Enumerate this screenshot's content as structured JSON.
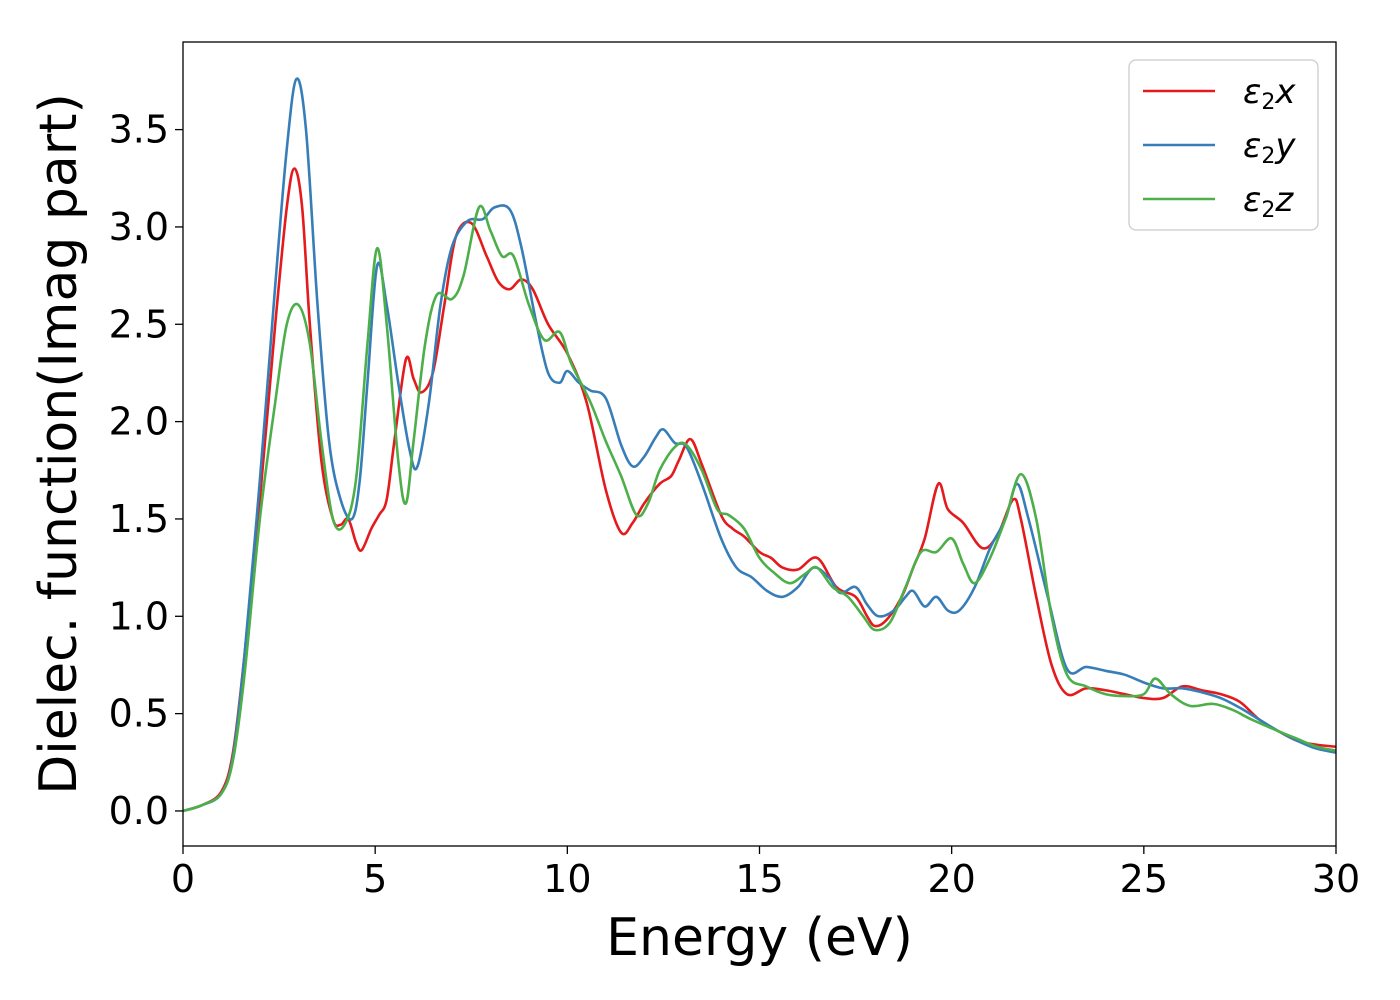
{
  "chart_data": {
    "type": "line",
    "title": "",
    "xlabel": "Energy (eV)",
    "ylabel": "Dielec. function(Imag part)",
    "xlim": [
      0,
      30
    ],
    "ylim": [
      -0.18,
      3.95
    ],
    "xticks": [
      0,
      5,
      10,
      15,
      20,
      25,
      30
    ],
    "xtick_labels": [
      "0",
      "5",
      "10",
      "15",
      "20",
      "25",
      "30"
    ],
    "yticks": [
      0.0,
      0.5,
      1.0,
      1.5,
      2.0,
      2.5,
      3.0,
      3.5
    ],
    "ytick_labels": [
      "0.0",
      "0.5",
      "1.0",
      "1.5",
      "2.0",
      "2.5",
      "3.0",
      "3.5"
    ],
    "grid": false,
    "legend_position": "top-right",
    "series": [
      {
        "name": "ε₂x",
        "legend_base": "ε",
        "legend_sub": "2",
        "legend_suffix": "x",
        "color": "#e41a1c",
        "points": [
          [
            0,
            0
          ],
          [
            0.5,
            0.03
          ],
          [
            1.0,
            0.1
          ],
          [
            1.3,
            0.3
          ],
          [
            1.6,
            0.8
          ],
          [
            2.0,
            1.6
          ],
          [
            2.4,
            2.5
          ],
          [
            2.7,
            3.1
          ],
          [
            2.9,
            3.3
          ],
          [
            3.1,
            3.1
          ],
          [
            3.3,
            2.5
          ],
          [
            3.6,
            1.8
          ],
          [
            3.9,
            1.5
          ],
          [
            4.1,
            1.47
          ],
          [
            4.3,
            1.5
          ],
          [
            4.5,
            1.38
          ],
          [
            4.65,
            1.34
          ],
          [
            4.9,
            1.45
          ],
          [
            5.1,
            1.52
          ],
          [
            5.3,
            1.6
          ],
          [
            5.5,
            1.9
          ],
          [
            5.8,
            2.32
          ],
          [
            6.0,
            2.22
          ],
          [
            6.2,
            2.15
          ],
          [
            6.5,
            2.25
          ],
          [
            6.8,
            2.6
          ],
          [
            7.1,
            2.95
          ],
          [
            7.5,
            3.02
          ],
          [
            7.9,
            2.85
          ],
          [
            8.2,
            2.72
          ],
          [
            8.5,
            2.68
          ],
          [
            8.8,
            2.73
          ],
          [
            9.1,
            2.68
          ],
          [
            9.5,
            2.5
          ],
          [
            10.0,
            2.35
          ],
          [
            10.5,
            2.1
          ],
          [
            11.0,
            1.65
          ],
          [
            11.4,
            1.43
          ],
          [
            11.7,
            1.48
          ],
          [
            12.0,
            1.58
          ],
          [
            12.4,
            1.68
          ],
          [
            12.7,
            1.72
          ],
          [
            12.9,
            1.8
          ],
          [
            13.2,
            1.91
          ],
          [
            13.5,
            1.78
          ],
          [
            14.0,
            1.52
          ],
          [
            14.3,
            1.45
          ],
          [
            14.6,
            1.41
          ],
          [
            15.0,
            1.33
          ],
          [
            15.3,
            1.3
          ],
          [
            15.6,
            1.25
          ],
          [
            16.0,
            1.24
          ],
          [
            16.5,
            1.3
          ],
          [
            17.0,
            1.15
          ],
          [
            17.5,
            1.1
          ],
          [
            17.8,
            1.0
          ],
          [
            18.0,
            0.95
          ],
          [
            18.3,
            0.98
          ],
          [
            18.7,
            1.1
          ],
          [
            19.0,
            1.25
          ],
          [
            19.3,
            1.4
          ],
          [
            19.65,
            1.68
          ],
          [
            19.9,
            1.55
          ],
          [
            20.3,
            1.48
          ],
          [
            20.8,
            1.35
          ],
          [
            21.2,
            1.42
          ],
          [
            21.6,
            1.6
          ],
          [
            21.8,
            1.5
          ],
          [
            22.2,
            1.1
          ],
          [
            22.6,
            0.75
          ],
          [
            23.0,
            0.6
          ],
          [
            23.5,
            0.63
          ],
          [
            24.0,
            0.62
          ],
          [
            24.5,
            0.6
          ],
          [
            25.0,
            0.58
          ],
          [
            25.5,
            0.58
          ],
          [
            26.0,
            0.64
          ],
          [
            26.5,
            0.62
          ],
          [
            27.0,
            0.6
          ],
          [
            27.5,
            0.56
          ],
          [
            28.0,
            0.47
          ],
          [
            28.5,
            0.41
          ],
          [
            29.0,
            0.36
          ],
          [
            29.5,
            0.34
          ],
          [
            30,
            0.33
          ]
        ]
      },
      {
        "name": "ε₂y",
        "legend_base": "ε",
        "legend_sub": "2",
        "legend_suffix": "y",
        "color": "#377eb8",
        "points": [
          [
            0,
            0
          ],
          [
            0.5,
            0.03
          ],
          [
            1.0,
            0.09
          ],
          [
            1.3,
            0.28
          ],
          [
            1.6,
            0.8
          ],
          [
            2.0,
            1.7
          ],
          [
            2.4,
            2.7
          ],
          [
            2.7,
            3.4
          ],
          [
            2.95,
            3.76
          ],
          [
            3.2,
            3.5
          ],
          [
            3.5,
            2.6
          ],
          [
            3.8,
            1.9
          ],
          [
            4.1,
            1.6
          ],
          [
            4.4,
            1.5
          ],
          [
            4.6,
            1.7
          ],
          [
            4.8,
            2.2
          ],
          [
            5.05,
            2.8
          ],
          [
            5.3,
            2.6
          ],
          [
            5.6,
            2.2
          ],
          [
            5.9,
            1.85
          ],
          [
            6.1,
            1.77
          ],
          [
            6.4,
            2.1
          ],
          [
            6.7,
            2.6
          ],
          [
            7.0,
            2.9
          ],
          [
            7.4,
            3.03
          ],
          [
            7.8,
            3.04
          ],
          [
            8.1,
            3.1
          ],
          [
            8.5,
            3.09
          ],
          [
            8.8,
            2.9
          ],
          [
            9.2,
            2.5
          ],
          [
            9.5,
            2.25
          ],
          [
            9.8,
            2.2
          ],
          [
            10.0,
            2.26
          ],
          [
            10.3,
            2.2
          ],
          [
            10.6,
            2.16
          ],
          [
            11.0,
            2.12
          ],
          [
            11.4,
            1.88
          ],
          [
            11.7,
            1.77
          ],
          [
            12.0,
            1.82
          ],
          [
            12.3,
            1.92
          ],
          [
            12.5,
            1.96
          ],
          [
            12.8,
            1.89
          ],
          [
            13.1,
            1.87
          ],
          [
            13.5,
            1.68
          ],
          [
            14.0,
            1.4
          ],
          [
            14.4,
            1.25
          ],
          [
            14.8,
            1.2
          ],
          [
            15.2,
            1.13
          ],
          [
            15.6,
            1.1
          ],
          [
            16.0,
            1.15
          ],
          [
            16.4,
            1.25
          ],
          [
            16.8,
            1.2
          ],
          [
            17.1,
            1.12
          ],
          [
            17.5,
            1.15
          ],
          [
            17.8,
            1.06
          ],
          [
            18.1,
            1.0
          ],
          [
            18.5,
            1.03
          ],
          [
            18.8,
            1.1
          ],
          [
            19.0,
            1.13
          ],
          [
            19.3,
            1.05
          ],
          [
            19.6,
            1.1
          ],
          [
            19.9,
            1.03
          ],
          [
            20.2,
            1.03
          ],
          [
            20.6,
            1.15
          ],
          [
            21.0,
            1.35
          ],
          [
            21.4,
            1.5
          ],
          [
            21.7,
            1.68
          ],
          [
            22.0,
            1.5
          ],
          [
            22.5,
            1.1
          ],
          [
            23.0,
            0.73
          ],
          [
            23.5,
            0.74
          ],
          [
            24.0,
            0.72
          ],
          [
            24.5,
            0.7
          ],
          [
            25.0,
            0.66
          ],
          [
            25.5,
            0.63
          ],
          [
            26.0,
            0.63
          ],
          [
            26.5,
            0.61
          ],
          [
            27.0,
            0.58
          ],
          [
            27.5,
            0.53
          ],
          [
            28.0,
            0.47
          ],
          [
            28.5,
            0.41
          ],
          [
            29.0,
            0.36
          ],
          [
            29.5,
            0.32
          ],
          [
            30,
            0.3
          ]
        ]
      },
      {
        "name": "ε₂z",
        "legend_base": "ε",
        "legend_sub": "2",
        "legend_suffix": "z",
        "color": "#4daf4a",
        "points": [
          [
            0,
            0
          ],
          [
            0.5,
            0.03
          ],
          [
            1.0,
            0.09
          ],
          [
            1.3,
            0.26
          ],
          [
            1.6,
            0.7
          ],
          [
            2.0,
            1.5
          ],
          [
            2.4,
            2.1
          ],
          [
            2.7,
            2.5
          ],
          [
            3.0,
            2.6
          ],
          [
            3.3,
            2.4
          ],
          [
            3.6,
            1.9
          ],
          [
            3.9,
            1.5
          ],
          [
            4.2,
            1.47
          ],
          [
            4.5,
            1.7
          ],
          [
            4.8,
            2.4
          ],
          [
            5.05,
            2.89
          ],
          [
            5.3,
            2.5
          ],
          [
            5.6,
            1.8
          ],
          [
            5.8,
            1.58
          ],
          [
            6.0,
            1.9
          ],
          [
            6.3,
            2.4
          ],
          [
            6.6,
            2.65
          ],
          [
            7.0,
            2.63
          ],
          [
            7.3,
            2.75
          ],
          [
            7.7,
            3.1
          ],
          [
            8.0,
            2.98
          ],
          [
            8.3,
            2.85
          ],
          [
            8.6,
            2.85
          ],
          [
            9.0,
            2.6
          ],
          [
            9.4,
            2.42
          ],
          [
            9.8,
            2.46
          ],
          [
            10.1,
            2.3
          ],
          [
            10.6,
            2.1
          ],
          [
            11.0,
            1.9
          ],
          [
            11.4,
            1.72
          ],
          [
            11.8,
            1.52
          ],
          [
            12.1,
            1.58
          ],
          [
            12.4,
            1.75
          ],
          [
            12.8,
            1.87
          ],
          [
            13.1,
            1.88
          ],
          [
            13.5,
            1.75
          ],
          [
            13.9,
            1.55
          ],
          [
            14.2,
            1.52
          ],
          [
            14.6,
            1.45
          ],
          [
            15.0,
            1.3
          ],
          [
            15.4,
            1.22
          ],
          [
            15.8,
            1.17
          ],
          [
            16.2,
            1.22
          ],
          [
            16.5,
            1.25
          ],
          [
            16.9,
            1.15
          ],
          [
            17.3,
            1.1
          ],
          [
            17.7,
            1.0
          ],
          [
            18.0,
            0.93
          ],
          [
            18.4,
            0.97
          ],
          [
            18.8,
            1.15
          ],
          [
            19.2,
            1.33
          ],
          [
            19.6,
            1.33
          ],
          [
            20.0,
            1.4
          ],
          [
            20.3,
            1.27
          ],
          [
            20.6,
            1.17
          ],
          [
            21.0,
            1.3
          ],
          [
            21.4,
            1.5
          ],
          [
            21.8,
            1.73
          ],
          [
            22.2,
            1.5
          ],
          [
            22.6,
            1.0
          ],
          [
            23.0,
            0.7
          ],
          [
            23.5,
            0.64
          ],
          [
            24.0,
            0.6
          ],
          [
            24.5,
            0.59
          ],
          [
            25.0,
            0.6
          ],
          [
            25.3,
            0.68
          ],
          [
            25.7,
            0.6
          ],
          [
            26.2,
            0.54
          ],
          [
            26.8,
            0.55
          ],
          [
            27.3,
            0.52
          ],
          [
            27.8,
            0.47
          ],
          [
            28.5,
            0.41
          ],
          [
            29.0,
            0.37
          ],
          [
            29.5,
            0.33
          ],
          [
            30,
            0.31
          ]
        ]
      }
    ]
  }
}
